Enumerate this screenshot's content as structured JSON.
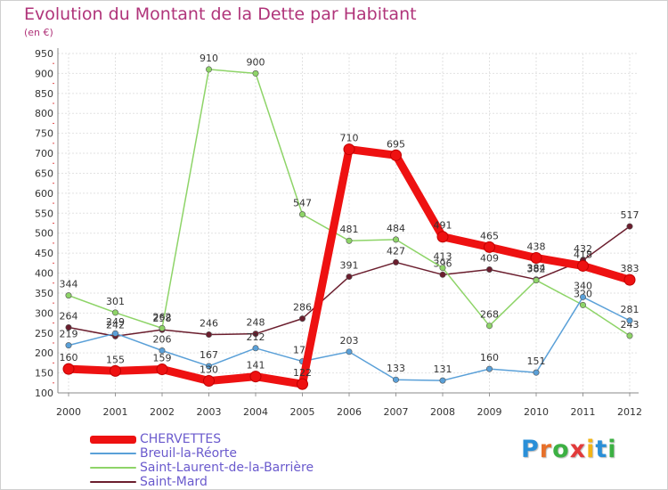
{
  "header": {
    "title": "Evolution du Montant de la Dette par Habitant",
    "subtitle": "(en €)"
  },
  "logo": {
    "text": "Proxiti",
    "letter_colors": [
      "#2a8fd8",
      "#e7702a",
      "#3cb043",
      "#e23b3b",
      "#f2b417",
      "#2a8fd8",
      "#3cb043"
    ]
  },
  "chart_data": {
    "type": "line",
    "title": "Evolution du Montant de la Dette par Habitant",
    "subtitle": "(en €)",
    "xlabel": "",
    "ylabel": "",
    "x": [
      "2000",
      "2001",
      "2002",
      "2003",
      "2004",
      "2005",
      "2006",
      "2007",
      "2008",
      "2009",
      "2010",
      "2011",
      "2012"
    ],
    "ylim": [
      100,
      950
    ],
    "yticks": [
      100,
      150,
      200,
      250,
      300,
      350,
      400,
      450,
      500,
      550,
      600,
      650,
      700,
      750,
      800,
      850,
      900,
      950
    ],
    "grid": true,
    "legend": "bottom-left",
    "series": [
      {
        "name": "Saint-Mard",
        "color": "#6b1e2e",
        "values": [
          264,
          242,
          258,
          246,
          248,
          286,
          391,
          427,
          396,
          409,
          384,
          432,
          517
        ]
      },
      {
        "name": "Saint-Laurent-de-la-Barrière",
        "color": "#8ed468",
        "values": [
          344,
          301,
          262,
          910,
          900,
          547,
          481,
          484,
          413,
          268,
          382,
          320,
          243
        ]
      },
      {
        "name": "Breuil-la-Réorte",
        "color": "#5aa0d8",
        "values": [
          219,
          249,
          206,
          167,
          212,
          179,
          203,
          133,
          131,
          160,
          151,
          340,
          281
        ]
      },
      {
        "name": "CHERVETTES",
        "color": "#ee1111",
        "values": [
          160,
          155,
          159,
          130,
          141,
          122,
          710,
          695,
          491,
          465,
          438,
          418,
          383
        ]
      }
    ]
  },
  "legend_items": [
    {
      "name": "CHERVETTES",
      "color": "#ee1111"
    },
    {
      "name": "Breuil-la-Réorte",
      "color": "#5aa0d8"
    },
    {
      "name": "Saint-Laurent-de-la-Barrière",
      "color": "#8ed468"
    },
    {
      "name": "Saint-Mard",
      "color": "#6b1e2e"
    }
  ]
}
